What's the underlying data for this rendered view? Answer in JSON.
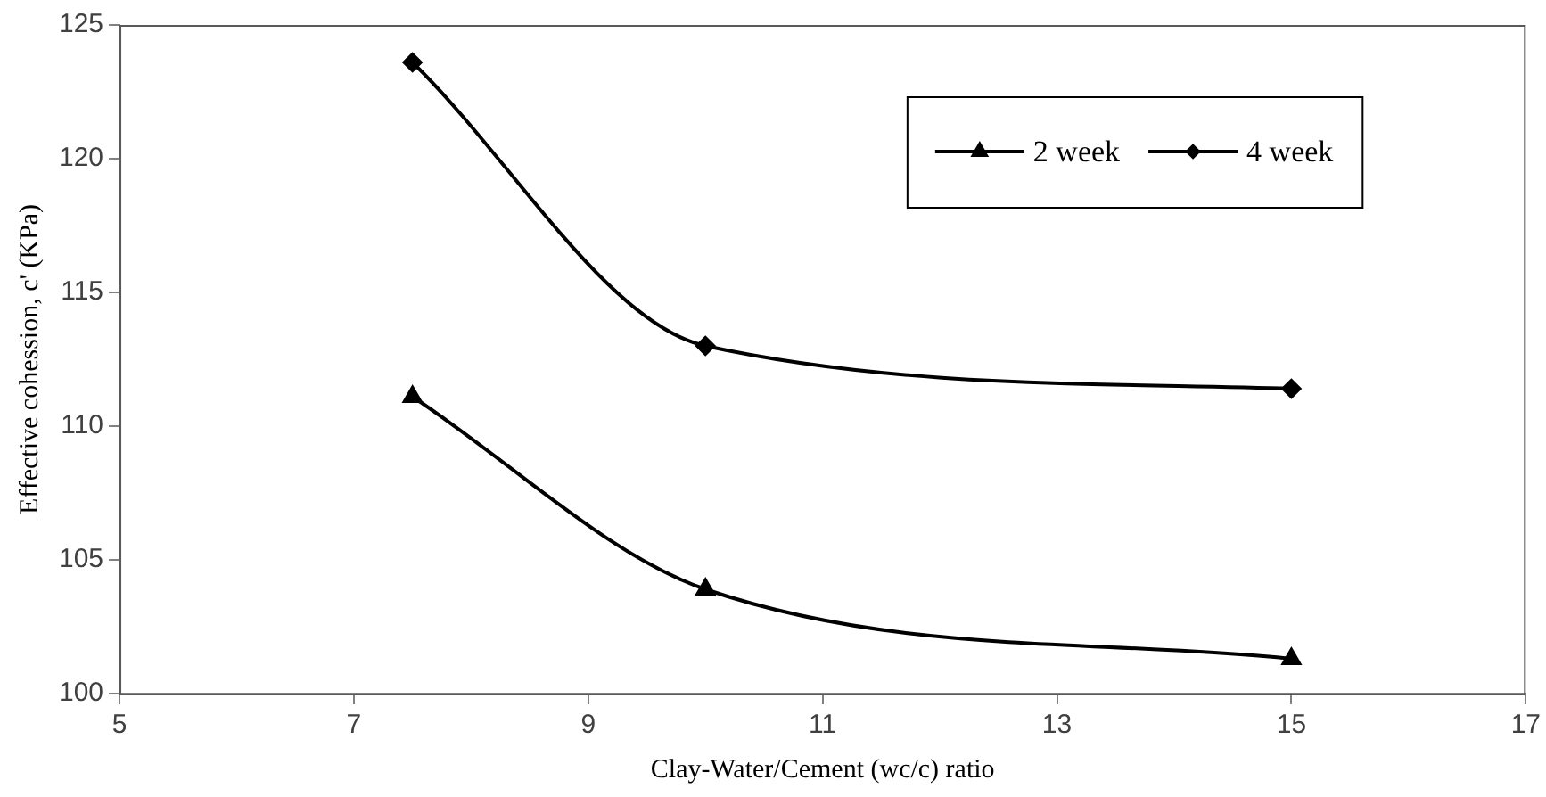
{
  "chart_data": {
    "type": "line",
    "xlabel": "Clay-Water/Cement (wc/c) ratio",
    "ylabel": "Effective cohession, c' (KPa)",
    "x": [
      7.5,
      10,
      15
    ],
    "series": [
      {
        "name": "2 week",
        "color": "#000000",
        "marker": "triangle",
        "values": [
          111.1,
          103.9,
          101.3
        ]
      },
      {
        "name": "4 week",
        "color": "#000000",
        "marker": "diamond",
        "values": [
          123.6,
          113.0,
          111.4
        ]
      }
    ],
    "xlim": [
      5,
      17
    ],
    "xticks": [
      5,
      7,
      9,
      11,
      13,
      15,
      17
    ],
    "ylim": [
      100,
      125
    ],
    "yticks": [
      100,
      105,
      110,
      115,
      120,
      125
    ],
    "grid": false,
    "legend": "top right",
    "line_style": "solid"
  }
}
